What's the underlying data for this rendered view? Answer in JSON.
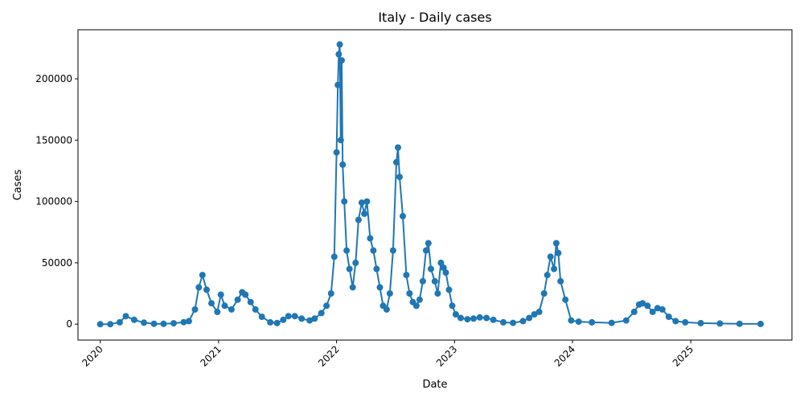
{
  "chart_data": {
    "type": "line",
    "title": "Italy - Daily cases",
    "xlabel": "Date",
    "ylabel": "Cases",
    "x_ticks": [
      "2020",
      "2021",
      "2022",
      "2023",
      "2024",
      "2025"
    ],
    "y_ticks": [
      0,
      50000,
      100000,
      150000,
      200000
    ],
    "xlim": [
      "2019-10-24",
      "2025-11-10"
    ],
    "ylim": [
      -13000,
      240000
    ],
    "grid": false,
    "legend": "none",
    "series": [
      {
        "color": "#1f77b4",
        "marker": "circle",
        "points": [
          [
            "2020-01-01",
            0
          ],
          [
            "2020-02-01",
            0
          ],
          [
            "2020-03-01",
            1500
          ],
          [
            "2020-03-20",
            6500
          ],
          [
            "2020-04-15",
            3500
          ],
          [
            "2020-05-15",
            1200
          ],
          [
            "2020-06-15",
            300
          ],
          [
            "2020-07-15",
            250
          ],
          [
            "2020-08-15",
            700
          ],
          [
            "2020-09-15",
            1600
          ],
          [
            "2020-10-01",
            2500
          ],
          [
            "2020-10-20",
            12000
          ],
          [
            "2020-11-01",
            30000
          ],
          [
            "2020-11-12",
            40000
          ],
          [
            "2020-11-25",
            28000
          ],
          [
            "2020-12-10",
            17000
          ],
          [
            "2020-12-28",
            10000
          ],
          [
            "2021-01-08",
            24000
          ],
          [
            "2021-01-20",
            15000
          ],
          [
            "2021-02-10",
            12000
          ],
          [
            "2021-03-01",
            20000
          ],
          [
            "2021-03-15",
            26000
          ],
          [
            "2021-03-25",
            24000
          ],
          [
            "2021-04-10",
            18000
          ],
          [
            "2021-04-25",
            12000
          ],
          [
            "2021-05-15",
            6000
          ],
          [
            "2021-06-10",
            1500
          ],
          [
            "2021-07-01",
            900
          ],
          [
            "2021-07-20",
            3500
          ],
          [
            "2021-08-05",
            6500
          ],
          [
            "2021-08-25",
            6500
          ],
          [
            "2021-09-15",
            4500
          ],
          [
            "2021-10-10",
            3000
          ],
          [
            "2021-10-25",
            4500
          ],
          [
            "2021-11-15",
            9000
          ],
          [
            "2021-12-01",
            15000
          ],
          [
            "2021-12-15",
            25000
          ],
          [
            "2021-12-25",
            55000
          ],
          [
            "2022-01-01",
            140000
          ],
          [
            "2022-01-05",
            195000
          ],
          [
            "2022-01-08",
            220000
          ],
          [
            "2022-01-11",
            228000
          ],
          [
            "2022-01-14",
            150000
          ],
          [
            "2022-01-17",
            215000
          ],
          [
            "2022-01-20",
            130000
          ],
          [
            "2022-01-25",
            100000
          ],
          [
            "2022-02-01",
            60000
          ],
          [
            "2022-02-10",
            45000
          ],
          [
            "2022-02-20",
            30000
          ],
          [
            "2022-03-01",
            50000
          ],
          [
            "2022-03-10",
            85000
          ],
          [
            "2022-03-20",
            99000
          ],
          [
            "2022-03-28",
            90000
          ],
          [
            "2022-04-05",
            100000
          ],
          [
            "2022-04-15",
            70000
          ],
          [
            "2022-04-25",
            60000
          ],
          [
            "2022-05-05",
            45000
          ],
          [
            "2022-05-15",
            30000
          ],
          [
            "2022-05-25",
            15000
          ],
          [
            "2022-06-05",
            12000
          ],
          [
            "2022-06-15",
            25000
          ],
          [
            "2022-06-25",
            60000
          ],
          [
            "2022-07-05",
            132000
          ],
          [
            "2022-07-10",
            144000
          ],
          [
            "2022-07-15",
            120000
          ],
          [
            "2022-07-25",
            88000
          ],
          [
            "2022-08-05",
            40000
          ],
          [
            "2022-08-15",
            25000
          ],
          [
            "2022-08-25",
            18000
          ],
          [
            "2022-09-05",
            15000
          ],
          [
            "2022-09-15",
            20000
          ],
          [
            "2022-09-25",
            35000
          ],
          [
            "2022-10-05",
            60000
          ],
          [
            "2022-10-12",
            66000
          ],
          [
            "2022-10-20",
            45000
          ],
          [
            "2022-11-01",
            35000
          ],
          [
            "2022-11-10",
            25000
          ],
          [
            "2022-11-20",
            50000
          ],
          [
            "2022-11-28",
            46000
          ],
          [
            "2022-12-05",
            42000
          ],
          [
            "2022-12-15",
            28000
          ],
          [
            "2022-12-25",
            15000
          ],
          [
            "2023-01-05",
            8000
          ],
          [
            "2023-01-20",
            5000
          ],
          [
            "2023-02-10",
            4000
          ],
          [
            "2023-03-01",
            4500
          ],
          [
            "2023-03-20",
            5500
          ],
          [
            "2023-04-10",
            5000
          ],
          [
            "2023-05-01",
            3500
          ],
          [
            "2023-06-01",
            1500
          ],
          [
            "2023-07-01",
            1000
          ],
          [
            "2023-08-01",
            2500
          ],
          [
            "2023-08-20",
            5000
          ],
          [
            "2023-09-05",
            8000
          ],
          [
            "2023-09-20",
            10000
          ],
          [
            "2023-10-05",
            25000
          ],
          [
            "2023-10-15",
            40000
          ],
          [
            "2023-10-25",
            55000
          ],
          [
            "2023-11-05",
            45000
          ],
          [
            "2023-11-12",
            66000
          ],
          [
            "2023-11-18",
            58000
          ],
          [
            "2023-11-25",
            35000
          ],
          [
            "2023-12-10",
            20000
          ],
          [
            "2023-12-28",
            3000
          ],
          [
            "2024-01-20",
            2000
          ],
          [
            "2024-03-01",
            1500
          ],
          [
            "2024-05-01",
            1000
          ],
          [
            "2024-06-15",
            3000
          ],
          [
            "2024-07-10",
            10000
          ],
          [
            "2024-07-25",
            16000
          ],
          [
            "2024-08-05",
            17000
          ],
          [
            "2024-08-20",
            15000
          ],
          [
            "2024-09-05",
            10000
          ],
          [
            "2024-09-20",
            13000
          ],
          [
            "2024-10-05",
            12000
          ],
          [
            "2024-10-25",
            6000
          ],
          [
            "2024-11-15",
            2500
          ],
          [
            "2024-12-15",
            1500
          ],
          [
            "2025-02-01",
            800
          ],
          [
            "2025-04-01",
            500
          ],
          [
            "2025-06-01",
            300
          ],
          [
            "2025-08-05",
            200
          ]
        ]
      }
    ]
  }
}
